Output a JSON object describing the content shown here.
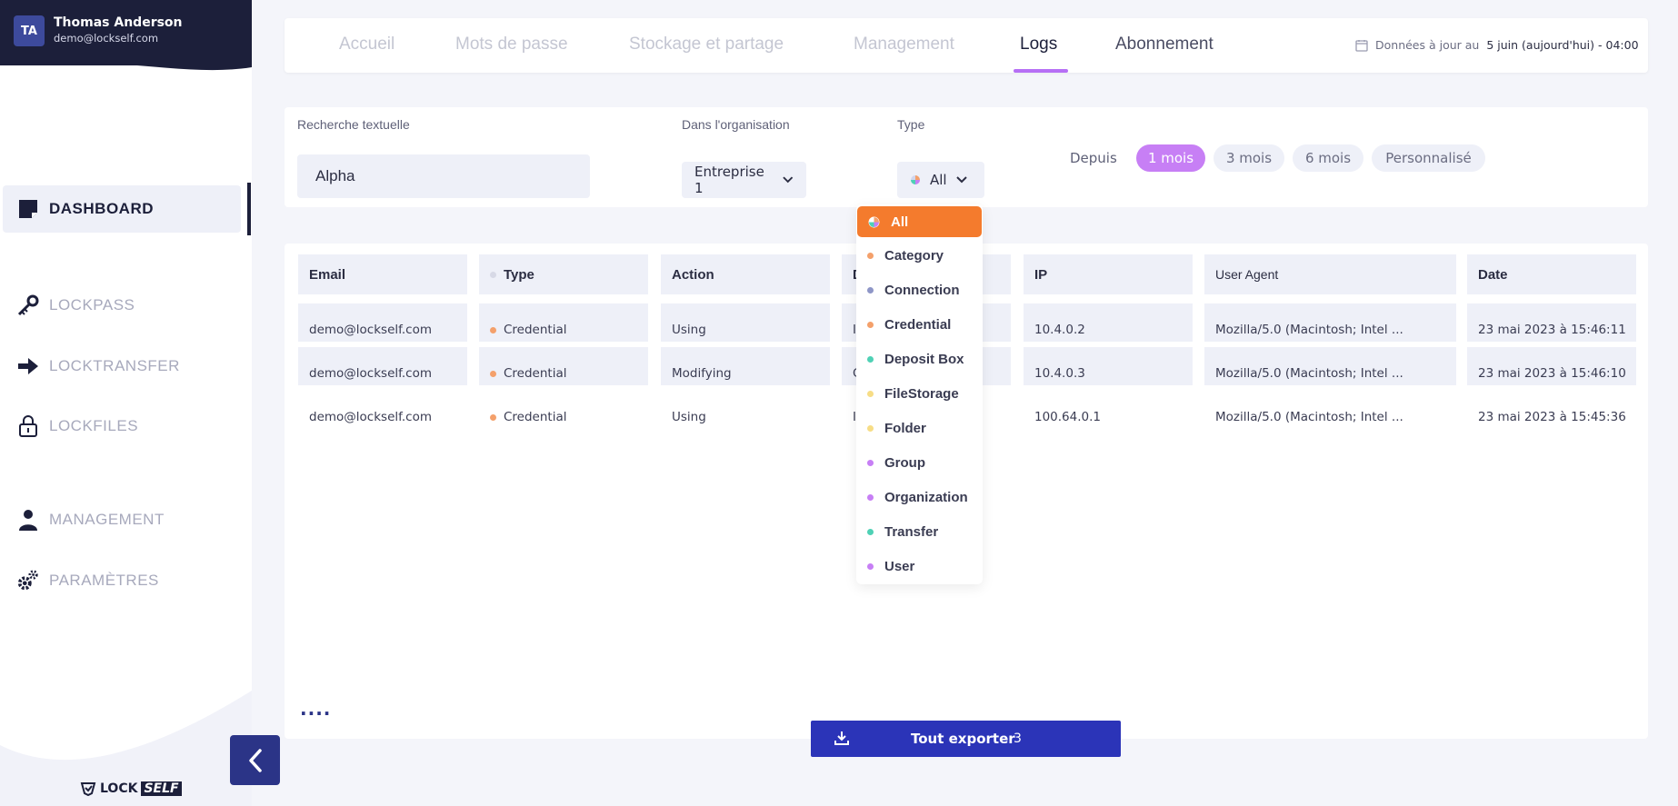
{
  "user": {
    "initials": "TA",
    "name": "Thomas Anderson",
    "email": "demo@lockself.com"
  },
  "sidebar": {
    "items": [
      {
        "label": "DASHBOARD",
        "icon": "dashboard-icon",
        "active": true
      },
      {
        "label": "LOCKPASS",
        "icon": "key-icon"
      },
      {
        "label": "LOCKTRANSFER",
        "icon": "arrow-right-icon"
      },
      {
        "label": "LOCKFILES",
        "icon": "lock-icon"
      },
      {
        "label": "MANAGEMENT",
        "icon": "user-icon"
      },
      {
        "label": "PARAMÈTRES",
        "icon": "gears-icon"
      }
    ],
    "logo_lock": "LOCK",
    "logo_self": "SELF"
  },
  "tabs": [
    {
      "label": "Accueil"
    },
    {
      "label": "Mots de passe"
    },
    {
      "label": "Stockage et partage"
    },
    {
      "label": "Management"
    },
    {
      "label": "Logs",
      "active": true
    },
    {
      "label": "Abonnement"
    }
  ],
  "updated": {
    "prefix": "Données à jour au",
    "date": "5 juin (aujourd'hui) - 04:00"
  },
  "filters": {
    "search_label": "Recherche textuelle",
    "search_value": "Alpha",
    "org_label": "Dans l'organisation",
    "org_value": "Entreprise 1",
    "type_label": "Type",
    "type_value": "All",
    "period_label": "Depuis",
    "periods": [
      "1 mois",
      "3 mois",
      "6 mois",
      "Personnalisé"
    ],
    "active_period": "1 mois"
  },
  "table": {
    "columns": [
      "Email",
      "Type",
      "Action",
      "D",
      "",
      "IP",
      "User Agent",
      "Date"
    ],
    "rows": [
      {
        "email": "demo@lockself.com",
        "type": "Credential",
        "action": "Using",
        "d": "In",
        "ip": "10.4.0.2",
        "ua": "Mozilla/5.0 (Macintosh; Intel ...",
        "date": "23 mai 2023 à 15:46:11"
      },
      {
        "email": "demo@lockself.com",
        "type": "Credential",
        "action": "Modifying",
        "d": "Cl",
        "ip": "10.4.0.3",
        "ua": "Mozilla/5.0 (Macintosh; Intel ...",
        "date": "23 mai 2023 à 15:46:10"
      },
      {
        "email": "demo@lockself.com",
        "type": "Credential",
        "action": "Using",
        "d": "In",
        "ip": "100.64.0.1",
        "ua": "Mozilla/5.0 (Macintosh; Intel ...",
        "date": "23 mai 2023 à 15:45:36"
      }
    ],
    "more": "...."
  },
  "export": {
    "label": "Tout exporter",
    "count": "3"
  },
  "type_dropdown": {
    "options": [
      {
        "label": "All",
        "color": "#f47b2d",
        "active": true
      },
      {
        "label": "Category",
        "color": "#f4a06b"
      },
      {
        "label": "Connection",
        "color": "#8e96c7"
      },
      {
        "label": "Credential",
        "color": "#f4a06b"
      },
      {
        "label": "Deposit Box",
        "color": "#4fd1b5"
      },
      {
        "label": "FileStorage",
        "color": "#f7dd86"
      },
      {
        "label": "Folder",
        "color": "#f7dd86"
      },
      {
        "label": "Group",
        "color": "#c77ff5"
      },
      {
        "label": "Organization",
        "color": "#c77ff5"
      },
      {
        "label": "Transfer",
        "color": "#4fd1b5"
      },
      {
        "label": "User",
        "color": "#c77ff5"
      }
    ]
  },
  "colors": {
    "accent": "#c77ff5",
    "primary": "#2b34b8",
    "navy": "#1c1f3a",
    "orange": "#f47b2d"
  }
}
